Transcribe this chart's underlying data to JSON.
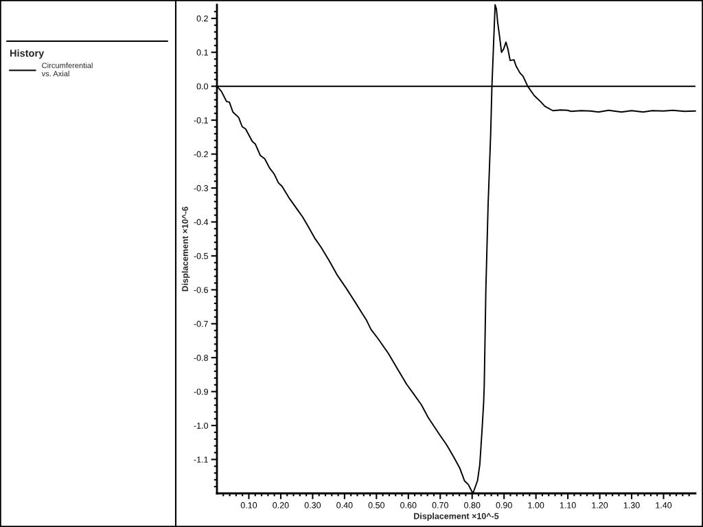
{
  "chart_data": {
    "type": "line",
    "xlabel": "Displacement ×10^-5",
    "ylabel": "Displacement ×10^-6",
    "legend_title": "History",
    "legend": "left",
    "marker": "none",
    "line_style": "solid",
    "x": [
      0,
      0.014,
      0.03,
      0.039,
      0.05,
      0.068,
      0.079,
      0.09,
      0.111,
      0.12,
      0.136,
      0.15,
      0.165,
      0.179,
      0.193,
      0.204,
      0.226,
      0.254,
      0.269,
      0.29,
      0.308,
      0.326,
      0.351,
      0.376,
      0.405,
      0.433,
      0.455,
      0.469,
      0.483,
      0.505,
      0.537,
      0.569,
      0.595,
      0.616,
      0.641,
      0.662,
      0.698,
      0.72,
      0.741,
      0.761,
      0.776,
      0.788,
      0.8,
      0.804,
      0.817,
      0.824,
      0.831,
      0.836,
      0.838,
      0.843,
      0.85,
      0.858,
      0.862,
      0.867,
      0.872,
      0.876,
      0.88,
      0.885,
      0.892,
      0.899,
      0.906,
      0.912,
      0.919,
      0.931,
      0.938,
      0.95,
      0.96,
      0.974,
      0.995,
      1.014,
      1.028,
      1.053,
      1.078,
      1.099,
      1.11,
      1.142,
      1.171,
      1.196,
      1.228,
      1.268,
      1.3,
      1.336,
      1.364,
      1.4,
      1.429,
      1.465,
      1.5
    ],
    "series": [
      {
        "name": "Circumferential\nvs. Axial",
        "color": "#000000",
        "values": [
          0,
          -0.015,
          -0.045,
          -0.047,
          -0.076,
          -0.092,
          -0.119,
          -0.126,
          -0.163,
          -0.17,
          -0.204,
          -0.214,
          -0.241,
          -0.258,
          -0.285,
          -0.295,
          -0.329,
          -0.366,
          -0.386,
          -0.42,
          -0.45,
          -0.474,
          -0.513,
          -0.555,
          -0.595,
          -0.636,
          -0.669,
          -0.69,
          -0.717,
          -0.744,
          -0.787,
          -0.838,
          -0.879,
          -0.906,
          -0.939,
          -0.976,
          -1.027,
          -1.057,
          -1.091,
          -1.125,
          -1.163,
          -1.174,
          -1.196,
          -1.196,
          -1.162,
          -1.115,
          -1.014,
          -0.933,
          -0.879,
          -0.6,
          -0.35,
          -0.143,
          0.0,
          0.12,
          0.24,
          0.228,
          0.188,
          0.154,
          0.1,
          0.11,
          0.13,
          0.11,
          0.076,
          0.078,
          0.059,
          0.039,
          0.029,
          0.0,
          -0.028,
          -0.045,
          -0.059,
          -0.072,
          -0.07,
          -0.071,
          -0.074,
          -0.072,
          -0.073,
          -0.076,
          -0.071,
          -0.076,
          -0.072,
          -0.076,
          -0.072,
          -0.073,
          -0.071,
          -0.074,
          -0.073
        ]
      }
    ],
    "ref_lines": [
      {
        "axis": "y",
        "value": 0,
        "color": "#000000"
      }
    ],
    "xlim": [
      0,
      1.5
    ],
    "ylim": [
      -1.2,
      0.24
    ],
    "xticks": [
      {
        "value": 0.02,
        "label": null
      },
      {
        "value": 0.04,
        "label": null
      },
      {
        "value": 0.06,
        "label": null
      },
      {
        "value": 0.08,
        "label": null
      },
      {
        "value": 0.1,
        "label": "0.10"
      },
      {
        "value": 0.12,
        "label": null
      },
      {
        "value": 0.14,
        "label": null
      },
      {
        "value": 0.16,
        "label": null
      },
      {
        "value": 0.18,
        "label": null
      },
      {
        "value": 0.2,
        "label": "0.20"
      },
      {
        "value": 0.22,
        "label": null
      },
      {
        "value": 0.24,
        "label": null
      },
      {
        "value": 0.26,
        "label": null
      },
      {
        "value": 0.28,
        "label": null
      },
      {
        "value": 0.3,
        "label": "0.30"
      },
      {
        "value": 0.32,
        "label": null
      },
      {
        "value": 0.34,
        "label": null
      },
      {
        "value": 0.36,
        "label": null
      },
      {
        "value": 0.38,
        "label": null
      },
      {
        "value": 0.4,
        "label": "0.40"
      },
      {
        "value": 0.42,
        "label": null
      },
      {
        "value": 0.44,
        "label": null
      },
      {
        "value": 0.46,
        "label": null
      },
      {
        "value": 0.48,
        "label": null
      },
      {
        "value": 0.5,
        "label": "0.50"
      },
      {
        "value": 0.52,
        "label": null
      },
      {
        "value": 0.54,
        "label": null
      },
      {
        "value": 0.56,
        "label": null
      },
      {
        "value": 0.58,
        "label": null
      },
      {
        "value": 0.6,
        "label": "0.60"
      },
      {
        "value": 0.62,
        "label": null
      },
      {
        "value": 0.64,
        "label": null
      },
      {
        "value": 0.66,
        "label": null
      },
      {
        "value": 0.68,
        "label": null
      },
      {
        "value": 0.7,
        "label": "0.70"
      },
      {
        "value": 0.72,
        "label": null
      },
      {
        "value": 0.74,
        "label": null
      },
      {
        "value": 0.76,
        "label": null
      },
      {
        "value": 0.78,
        "label": null
      },
      {
        "value": 0.8,
        "label": "0.80"
      },
      {
        "value": 0.82,
        "label": null
      },
      {
        "value": 0.84,
        "label": null
      },
      {
        "value": 0.86,
        "label": null
      },
      {
        "value": 0.88,
        "label": null
      },
      {
        "value": 0.9,
        "label": "0.90"
      },
      {
        "value": 0.92,
        "label": null
      },
      {
        "value": 0.94,
        "label": null
      },
      {
        "value": 0.96,
        "label": null
      },
      {
        "value": 0.98,
        "label": null
      },
      {
        "value": 1.0,
        "label": "1.00"
      },
      {
        "value": 1.02,
        "label": null
      },
      {
        "value": 1.04,
        "label": null
      },
      {
        "value": 1.06,
        "label": null
      },
      {
        "value": 1.08,
        "label": null
      },
      {
        "value": 1.1,
        "label": "1.10"
      },
      {
        "value": 1.12,
        "label": null
      },
      {
        "value": 1.14,
        "label": null
      },
      {
        "value": 1.16,
        "label": null
      },
      {
        "value": 1.18,
        "label": null
      },
      {
        "value": 1.2,
        "label": "1.20"
      },
      {
        "value": 1.22,
        "label": null
      },
      {
        "value": 1.24,
        "label": null
      },
      {
        "value": 1.26,
        "label": null
      },
      {
        "value": 1.28,
        "label": null
      },
      {
        "value": 1.3,
        "label": "1.30"
      },
      {
        "value": 1.32,
        "label": null
      },
      {
        "value": 1.34,
        "label": null
      },
      {
        "value": 1.36,
        "label": null
      },
      {
        "value": 1.38,
        "label": null
      },
      {
        "value": 1.4,
        "label": "1.40"
      },
      {
        "value": 1.42,
        "label": null
      },
      {
        "value": 1.44,
        "label": null
      },
      {
        "value": 1.46,
        "label": null
      },
      {
        "value": 1.48,
        "label": null
      }
    ],
    "yticks": [
      {
        "value": -1.18,
        "label": null
      },
      {
        "value": -1.16,
        "label": null
      },
      {
        "value": -1.14,
        "label": null
      },
      {
        "value": -1.12,
        "label": null
      },
      -1.1,
      {
        "value": -1.08,
        "label": null
      },
      {
        "value": -1.06,
        "label": null
      },
      {
        "value": -1.04,
        "label": null
      },
      {
        "value": -1.02,
        "label": null
      },
      {
        "value": -1,
        "label": "-1.0"
      },
      {
        "value": -0.98,
        "label": null
      },
      {
        "value": -0.96,
        "label": null
      },
      {
        "value": -0.94,
        "label": null
      },
      {
        "value": -0.92,
        "label": null
      },
      -0.9,
      {
        "value": -0.88,
        "label": null
      },
      {
        "value": -0.86,
        "label": null
      },
      {
        "value": -0.84,
        "label": null
      },
      {
        "value": -0.82,
        "label": null
      },
      -0.8,
      {
        "value": -0.78,
        "label": null
      },
      {
        "value": -0.76,
        "label": null
      },
      {
        "value": -0.74,
        "label": null
      },
      {
        "value": -0.72,
        "label": null
      },
      -0.7,
      {
        "value": -0.68,
        "label": null
      },
      {
        "value": -0.66,
        "label": null
      },
      {
        "value": -0.64,
        "label": null
      },
      {
        "value": -0.62,
        "label": null
      },
      -0.6,
      {
        "value": -0.58,
        "label": null
      },
      {
        "value": -0.56,
        "label": null
      },
      {
        "value": -0.54,
        "label": null
      },
      {
        "value": -0.52,
        "label": null
      },
      -0.5,
      {
        "value": -0.48,
        "label": null
      },
      {
        "value": -0.46,
        "label": null
      },
      {
        "value": -0.44,
        "label": null
      },
      {
        "value": -0.42,
        "label": null
      },
      -0.4,
      {
        "value": -0.38,
        "label": null
      },
      {
        "value": -0.36,
        "label": null
      },
      {
        "value": -0.34,
        "label": null
      },
      {
        "value": -0.32,
        "label": null
      },
      -0.3,
      {
        "value": -0.28,
        "label": null
      },
      {
        "value": -0.26,
        "label": null
      },
      {
        "value": -0.24,
        "label": null
      },
      {
        "value": -0.22,
        "label": null
      },
      -0.2,
      {
        "value": -0.18,
        "label": null
      },
      {
        "value": -0.16,
        "label": null
      },
      {
        "value": -0.14,
        "label": null
      },
      {
        "value": -0.12,
        "label": null
      },
      -0.1,
      {
        "value": -0.08,
        "label": null
      },
      {
        "value": -0.06,
        "label": null
      },
      {
        "value": -0.04,
        "label": null
      },
      {
        "value": -0.02,
        "label": null
      },
      {
        "value": 0,
        "label": "0.0"
      },
      {
        "value": 0.02,
        "label": null
      },
      {
        "value": 0.04,
        "label": null
      },
      {
        "value": 0.06,
        "label": null
      },
      {
        "value": 0.08,
        "label": null
      },
      0.1,
      {
        "value": 0.12,
        "label": null
      },
      {
        "value": 0.14,
        "label": null
      },
      {
        "value": 0.16,
        "label": null
      },
      {
        "value": 0.18,
        "label": null
      },
      0.2,
      {
        "value": 0.22,
        "label": null
      }
    ]
  }
}
